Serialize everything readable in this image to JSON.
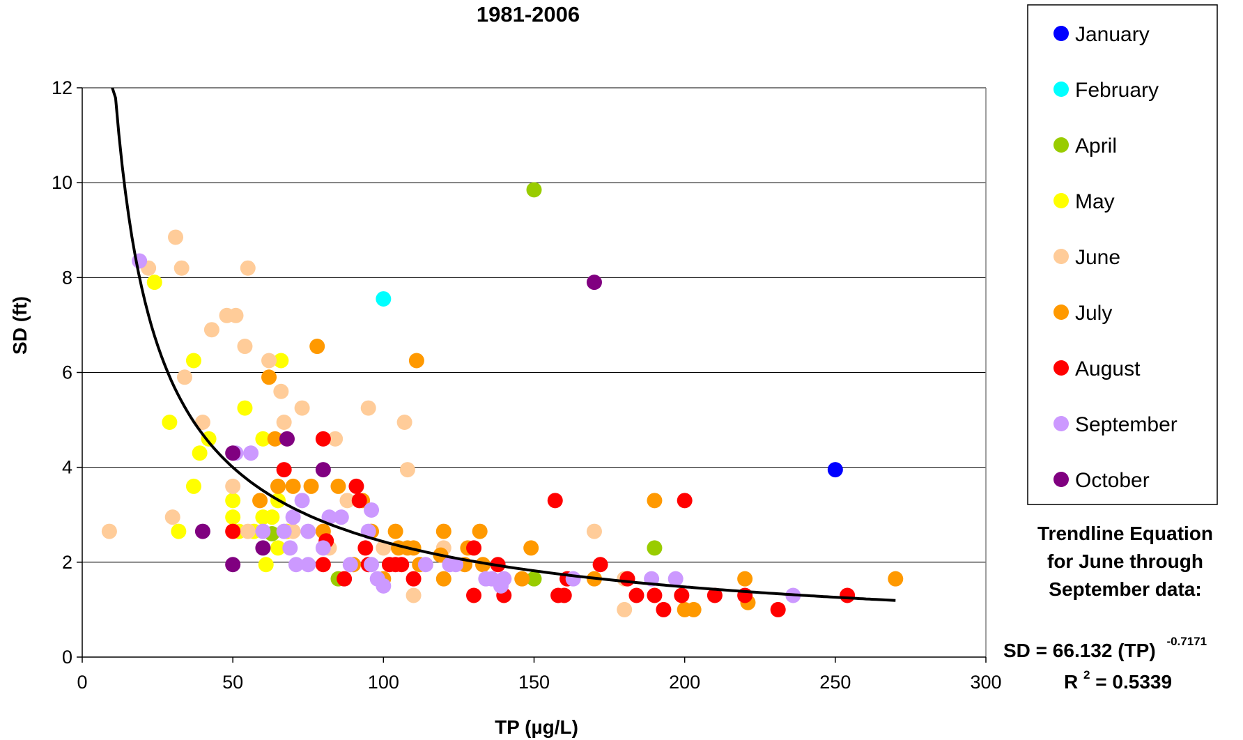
{
  "chart_data": {
    "type": "scatter",
    "title": "1981-2006",
    "xlabel": "TP (µg/L)",
    "ylabel": "SD (ft)",
    "xlim": [
      0,
      300
    ],
    "ylim": [
      0,
      12
    ],
    "xticks": [
      "0",
      "50",
      "100",
      "150",
      "200",
      "250",
      "300"
    ],
    "yticks": [
      "0",
      "2",
      "4",
      "6",
      "8",
      "10",
      "12"
    ],
    "grid": "horizontal",
    "legend_position": "right",
    "series": [
      {
        "name": "January",
        "color": "#0000ff",
        "points": [
          [
            250,
            3.95
          ]
        ]
      },
      {
        "name": "February",
        "color": "#00ffff",
        "points": [
          [
            100,
            7.55
          ]
        ]
      },
      {
        "name": "April",
        "color": "#99cc00",
        "points": [
          [
            150,
            9.85
          ],
          [
            190,
            2.3
          ],
          [
            150,
            1.65
          ],
          [
            85,
            1.65
          ],
          [
            63,
            2.6
          ]
        ]
      },
      {
        "name": "May",
        "color": "#ffff00",
        "points": [
          [
            24,
            7.9
          ],
          [
            37,
            6.25
          ],
          [
            29,
            4.95
          ],
          [
            37,
            3.6
          ],
          [
            32,
            2.65
          ],
          [
            39,
            4.3
          ],
          [
            42,
            4.6
          ],
          [
            54,
            5.25
          ],
          [
            60,
            4.6
          ],
          [
            50,
            3.3
          ],
          [
            50,
            2.95
          ],
          [
            66,
            6.25
          ],
          [
            60,
            2.95
          ],
          [
            63,
            2.95
          ],
          [
            61,
            1.95
          ],
          [
            65,
            2.3
          ],
          [
            65,
            3.3
          ],
          [
            52,
            2.65
          ],
          [
            57,
            2.65
          ],
          [
            68,
            2.65
          ]
        ]
      },
      {
        "name": "June",
        "color": "#ffcc99",
        "points": [
          [
            9,
            2.65
          ],
          [
            22,
            8.2
          ],
          [
            31,
            8.85
          ],
          [
            33,
            8.2
          ],
          [
            30,
            2.95
          ],
          [
            34,
            5.9
          ],
          [
            40,
            4.95
          ],
          [
            43,
            6.9
          ],
          [
            48,
            7.2
          ],
          [
            51,
            7.2
          ],
          [
            54,
            6.55
          ],
          [
            55,
            8.2
          ],
          [
            62,
            6.25
          ],
          [
            66,
            5.6
          ],
          [
            67,
            4.95
          ],
          [
            73,
            5.25
          ],
          [
            84,
            4.6
          ],
          [
            95,
            5.25
          ],
          [
            107,
            4.95
          ],
          [
            108,
            3.95
          ],
          [
            50,
            3.6
          ],
          [
            55,
            2.65
          ],
          [
            70,
            2.65
          ],
          [
            82,
            2.3
          ],
          [
            88,
            3.3
          ],
          [
            100,
            2.3
          ],
          [
            110,
            1.3
          ],
          [
            120,
            2.3
          ],
          [
            140,
            1.65
          ],
          [
            170,
            2.65
          ],
          [
            180,
            1.0
          ],
          [
            180,
            1.65
          ],
          [
            130,
            2.3
          ]
        ]
      },
      {
        "name": "July",
        "color": "#ff9900",
        "points": [
          [
            78,
            6.55
          ],
          [
            111,
            6.25
          ],
          [
            62,
            5.9
          ],
          [
            64,
            4.6
          ],
          [
            59,
            3.3
          ],
          [
            65,
            3.6
          ],
          [
            70,
            3.6
          ],
          [
            76,
            3.6
          ],
          [
            80,
            2.65
          ],
          [
            85,
            3.6
          ],
          [
            93,
            3.3
          ],
          [
            96,
            2.65
          ],
          [
            104,
            2.65
          ],
          [
            105,
            2.3
          ],
          [
            108,
            2.3
          ],
          [
            110,
            2.3
          ],
          [
            112,
            1.95
          ],
          [
            120,
            2.65
          ],
          [
            119,
            2.15
          ],
          [
            120,
            1.65
          ],
          [
            128,
            2.3
          ],
          [
            132,
            2.65
          ],
          [
            133,
            1.95
          ],
          [
            127,
            1.95
          ],
          [
            146,
            1.65
          ],
          [
            149,
            2.3
          ],
          [
            170,
            1.65
          ],
          [
            190,
            3.3
          ],
          [
            200,
            1.0
          ],
          [
            203,
            1.0
          ],
          [
            220,
            1.65
          ],
          [
            221,
            1.15
          ],
          [
            270,
            1.65
          ],
          [
            90,
            1.95
          ],
          [
            100,
            1.65
          ]
        ]
      },
      {
        "name": "August",
        "color": "#ff0000",
        "points": [
          [
            80,
            4.6
          ],
          [
            67,
            3.95
          ],
          [
            91,
            3.6
          ],
          [
            92,
            3.3
          ],
          [
            81,
            2.45
          ],
          [
            80,
            1.95
          ],
          [
            87,
            1.65
          ],
          [
            94,
            2.3
          ],
          [
            95,
            1.95
          ],
          [
            102,
            1.95
          ],
          [
            104,
            1.95
          ],
          [
            106,
            1.95
          ],
          [
            110,
            1.65
          ],
          [
            130,
            2.3
          ],
          [
            130,
            1.3
          ],
          [
            138,
            1.95
          ],
          [
            140,
            1.3
          ],
          [
            157,
            3.3
          ],
          [
            158,
            1.3
          ],
          [
            160,
            1.3
          ],
          [
            161,
            1.65
          ],
          [
            172,
            1.95
          ],
          [
            181,
            1.65
          ],
          [
            184,
            1.3
          ],
          [
            190,
            1.3
          ],
          [
            193,
            1.0
          ],
          [
            199,
            1.3
          ],
          [
            200,
            3.3
          ],
          [
            210,
            1.3
          ],
          [
            220,
            1.3
          ],
          [
            231,
            1.0
          ],
          [
            254,
            1.3
          ],
          [
            50,
            2.65
          ]
        ]
      },
      {
        "name": "September",
        "color": "#cc99ff",
        "points": [
          [
            19,
            8.35
          ],
          [
            56,
            4.3
          ],
          [
            51,
            4.3
          ],
          [
            73,
            3.3
          ],
          [
            96,
            3.1
          ],
          [
            70,
            2.95
          ],
          [
            82,
            2.95
          ],
          [
            86,
            2.95
          ],
          [
            60,
            2.65
          ],
          [
            67,
            2.65
          ],
          [
            75,
            2.65
          ],
          [
            95,
            2.65
          ],
          [
            69,
            2.3
          ],
          [
            80,
            2.3
          ],
          [
            71,
            1.95
          ],
          [
            75,
            1.95
          ],
          [
            89,
            1.95
          ],
          [
            96,
            1.95
          ],
          [
            98,
            1.65
          ],
          [
            100,
            1.5
          ],
          [
            114,
            1.95
          ],
          [
            122,
            1.95
          ],
          [
            124,
            1.95
          ],
          [
            134,
            1.65
          ],
          [
            136,
            1.65
          ],
          [
            139,
            1.5
          ],
          [
            140,
            1.65
          ],
          [
            163,
            1.65
          ],
          [
            189,
            1.65
          ],
          [
            197,
            1.65
          ],
          [
            236,
            1.3
          ]
        ]
      },
      {
        "name": "October",
        "color": "#800080",
        "points": [
          [
            170,
            7.9
          ],
          [
            68,
            4.6
          ],
          [
            50,
            4.3
          ],
          [
            80,
            3.95
          ],
          [
            40,
            2.65
          ],
          [
            60,
            2.3
          ],
          [
            50,
            1.95
          ]
        ]
      }
    ],
    "trendline": {
      "a": 66.132,
      "b": -0.7171,
      "x_from": 10,
      "x_to": 270,
      "color": "#000000"
    },
    "annotation": {
      "lines": [
        "Trendline Equation",
        "for June through",
        "September data:"
      ],
      "equation_main": "SD = 66.132 (TP)",
      "equation_exponent": "-0.7171",
      "r2_prefix": "R",
      "r2_sup": "2",
      "r2_value": " = 0.5339"
    }
  }
}
